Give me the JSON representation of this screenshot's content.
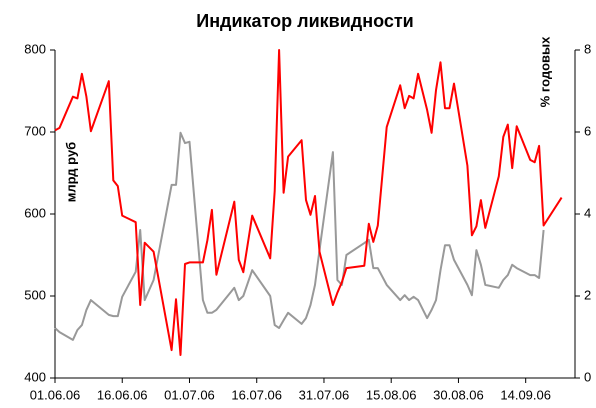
{
  "chart_data": {
    "type": "line",
    "title": "Индикатор ликвидности",
    "ylabel": "млрд руб",
    "y2label": "% годовых",
    "x": [
      "01.06.06",
      "02.06.06",
      "05.06.06",
      "06.06.06",
      "07.06.06",
      "08.06.06",
      "09.06.06",
      "13.06.06",
      "14.06.06",
      "15.06.06",
      "16.06.06",
      "19.06.06",
      "20.06.06",
      "21.06.06",
      "23.06.06",
      "27.06.06",
      "28.06.06",
      "29.06.06",
      "30.06.06",
      "01.07.06",
      "04.07.06",
      "05.07.06",
      "06.07.06",
      "07.07.06",
      "11.07.06",
      "12.07.06",
      "13.07.06",
      "15.07.06",
      "19.07.06",
      "20.07.06",
      "21.07.06",
      "22.07.06",
      "23.07.06",
      "26.07.06",
      "27.07.06",
      "28.07.06",
      "29.07.06",
      "30.07.06",
      "02.08.06",
      "03.08.06",
      "04.08.06",
      "05.08.06",
      "09.08.06",
      "10.08.06",
      "11.08.06",
      "12.08.06",
      "14.08.06",
      "17.08.06",
      "18.08.06",
      "19.08.06",
      "20.08.06",
      "21.08.06",
      "23.08.06",
      "24.08.06",
      "25.08.06",
      "26.08.06",
      "27.08.06",
      "28.08.06",
      "29.08.06",
      "01.09.06",
      "02.09.06",
      "03.09.06",
      "04.09.06",
      "05.09.06",
      "08.09.06",
      "09.09.06",
      "10.09.06",
      "11.09.06",
      "12.09.06",
      "15.09.06",
      "16.09.06",
      "17.09.06",
      "18.09.06",
      "22.09.06"
    ],
    "series": [
      {
        "color": "#ff0000",
        "values": [
          702,
          705,
          743,
          741,
          771,
          743,
          701,
          762,
          641,
          634,
          598,
          590,
          489,
          565,
          554,
          434,
          496,
          428,
          539,
          541,
          541,
          568,
          605,
          526,
          615,
          544,
          529,
          598,
          546,
          628,
          800,
          626,
          670,
          690,
          617,
          599,
          622,
          554,
          489,
          504,
          517,
          534,
          537,
          588,
          566,
          586,
          706,
          757,
          729,
          744,
          741,
          771,
          727,
          699,
          751,
          785,
          729,
          729,
          759,
          659,
          574,
          585,
          617,
          583,
          646,
          694,
          709,
          656,
          707,
          666,
          663,
          683,
          586,
          620
        ]
      },
      {
        "color": "#999999",
        "axis": "y2",
        "values": [
          1.22,
          1.12,
          0.93,
          1.17,
          1.29,
          1.66,
          1.9,
          1.54,
          1.51,
          1.51,
          1.98,
          2.59,
          3.61,
          1.9,
          2.39,
          4.71,
          4.71,
          5.98,
          5.73,
          5.76,
          1.9,
          1.59,
          1.59,
          1.66,
          2.2,
          1.9,
          2.0,
          2.63,
          2.0,
          1.29,
          1.22,
          1.41,
          1.59,
          1.32,
          1.46,
          1.78,
          2.27,
          3.12,
          5.51,
          2.39,
          2.27,
          3.0,
          3.29,
          3.37,
          2.68,
          2.68,
          2.27,
          1.9,
          2.02,
          1.9,
          1.98,
          1.9,
          1.46,
          1.66,
          1.9,
          2.63,
          3.24,
          3.24,
          2.88,
          2.27,
          2.02,
          3.12,
          2.76,
          2.27,
          2.2,
          2.39,
          2.51,
          2.76,
          2.68,
          2.51,
          2.51,
          2.44,
          3.61,
          null
        ]
      }
    ],
    "xlim": [
      "01.06.06",
      "25.09.06"
    ],
    "xticks": [
      "01.06.06",
      "16.06.06",
      "01.07.06",
      "16.07.06",
      "31.07.06",
      "15.08.06",
      "30.08.06",
      "14.09.06"
    ],
    "ylim": [
      400,
      800
    ],
    "yticks": [
      400,
      500,
      600,
      700,
      800
    ],
    "y2lim": [
      0,
      8
    ],
    "y2ticks": [
      0,
      2,
      4,
      6,
      8
    ]
  }
}
